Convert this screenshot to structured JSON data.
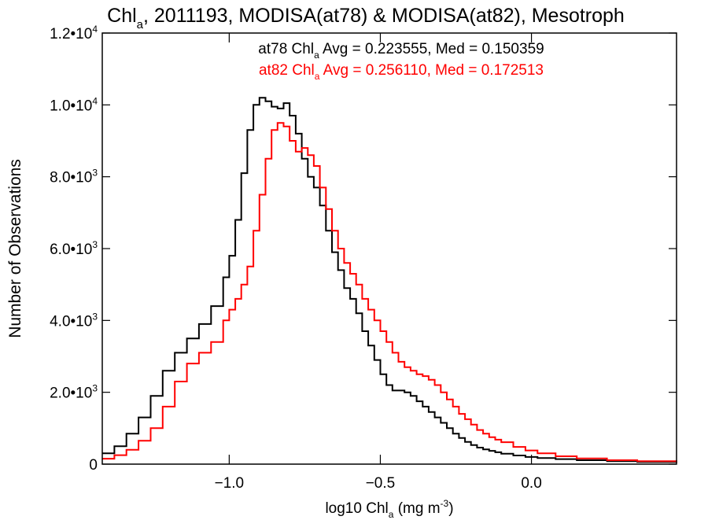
{
  "chart_data": {
    "type": "line",
    "title": {
      "prefix": "Chl",
      "sub": "a",
      "rest": ", 2011193, MODISA(at78) & MODISA(at82), Mesotroph"
    },
    "xlabel": {
      "prefix": "log10 Chl",
      "sub": "a",
      "mid": " (mg m",
      "sup": "-3",
      "end": ")"
    },
    "ylabel": "Number of Observations",
    "xlim": [
      -1.42,
      0.48
    ],
    "ylim": [
      0,
      12000
    ],
    "grid": false,
    "x_ticks": [
      {
        "value": -1.0,
        "label": "−1.0"
      },
      {
        "value": -0.5,
        "label": "−0.5"
      },
      {
        "value": 0.0,
        "label": "0.0"
      }
    ],
    "y_ticks": [
      {
        "value": 0,
        "mant": "0",
        "exp": ""
      },
      {
        "value": 2000,
        "mant": "2.0•10",
        "exp": "3"
      },
      {
        "value": 4000,
        "mant": "4.0•10",
        "exp": "3"
      },
      {
        "value": 6000,
        "mant": "6.0•10",
        "exp": "3"
      },
      {
        "value": 8000,
        "mant": "8.0•10",
        "exp": "3"
      },
      {
        "value": 10000,
        "mant": "1.0•10",
        "exp": "4"
      },
      {
        "value": 12000,
        "mant": "1.2•10",
        "exp": "4"
      }
    ],
    "series": [
      {
        "name": "at78",
        "color": "#000000",
        "legend": {
          "prefix": "at78 Chl",
          "sub": "a",
          "rest": " Avg = 0.223555, Med = 0.150359"
        },
        "points": [
          [
            -1.42,
            300
          ],
          [
            -1.38,
            500
          ],
          [
            -1.34,
            850
          ],
          [
            -1.3,
            1300
          ],
          [
            -1.26,
            1900
          ],
          [
            -1.22,
            2600
          ],
          [
            -1.18,
            3100
          ],
          [
            -1.14,
            3500
          ],
          [
            -1.1,
            3900
          ],
          [
            -1.06,
            4400
          ],
          [
            -1.02,
            5200
          ],
          [
            -1.0,
            5800
          ],
          [
            -0.98,
            6800
          ],
          [
            -0.96,
            8100
          ],
          [
            -0.94,
            9300
          ],
          [
            -0.92,
            10000
          ],
          [
            -0.9,
            10200
          ],
          [
            -0.88,
            10100
          ],
          [
            -0.86,
            9950
          ],
          [
            -0.84,
            9900
          ],
          [
            -0.82,
            10050
          ],
          [
            -0.8,
            9700
          ],
          [
            -0.78,
            9200
          ],
          [
            -0.76,
            8500
          ],
          [
            -0.74,
            8000
          ],
          [
            -0.72,
            7700
          ],
          [
            -0.7,
            7200
          ],
          [
            -0.68,
            6500
          ],
          [
            -0.66,
            5900
          ],
          [
            -0.64,
            5400
          ],
          [
            -0.62,
            4900
          ],
          [
            -0.6,
            4600
          ],
          [
            -0.58,
            4200
          ],
          [
            -0.56,
            3700
          ],
          [
            -0.54,
            3300
          ],
          [
            -0.52,
            2900
          ],
          [
            -0.5,
            2500
          ],
          [
            -0.48,
            2200
          ],
          [
            -0.46,
            2050
          ],
          [
            -0.44,
            2050
          ],
          [
            -0.42,
            2000
          ],
          [
            -0.4,
            1900
          ],
          [
            -0.38,
            1750
          ],
          [
            -0.36,
            1600
          ],
          [
            -0.34,
            1450
          ],
          [
            -0.32,
            1300
          ],
          [
            -0.3,
            1150
          ],
          [
            -0.28,
            1000
          ],
          [
            -0.26,
            850
          ],
          [
            -0.24,
            730
          ],
          [
            -0.22,
            620
          ],
          [
            -0.2,
            530
          ],
          [
            -0.18,
            460
          ],
          [
            -0.16,
            410
          ],
          [
            -0.14,
            370
          ],
          [
            -0.12,
            330
          ],
          [
            -0.1,
            290
          ],
          [
            -0.06,
            240
          ],
          [
            -0.02,
            200
          ],
          [
            0.02,
            170
          ],
          [
            0.08,
            140
          ],
          [
            0.15,
            110
          ],
          [
            0.25,
            80
          ],
          [
            0.35,
            60
          ],
          [
            0.48,
            40
          ]
        ]
      },
      {
        "name": "at82",
        "color": "#ff0000",
        "legend": {
          "prefix": "at82 Chl",
          "sub": "a",
          "rest": " Avg = 0.256110, Med = 0.172513"
        },
        "points": [
          [
            -1.42,
            150
          ],
          [
            -1.38,
            250
          ],
          [
            -1.34,
            400
          ],
          [
            -1.3,
            650
          ],
          [
            -1.26,
            1000
          ],
          [
            -1.22,
            1600
          ],
          [
            -1.18,
            2300
          ],
          [
            -1.14,
            2800
          ],
          [
            -1.1,
            3100
          ],
          [
            -1.06,
            3400
          ],
          [
            -1.02,
            4000
          ],
          [
            -1.0,
            4300
          ],
          [
            -0.98,
            4600
          ],
          [
            -0.96,
            5000
          ],
          [
            -0.94,
            5500
          ],
          [
            -0.92,
            6500
          ],
          [
            -0.9,
            7500
          ],
          [
            -0.88,
            8500
          ],
          [
            -0.86,
            9300
          ],
          [
            -0.84,
            9500
          ],
          [
            -0.82,
            9400
          ],
          [
            -0.8,
            9000
          ],
          [
            -0.78,
            8700
          ],
          [
            -0.76,
            8800
          ],
          [
            -0.74,
            8600
          ],
          [
            -0.72,
            8300
          ],
          [
            -0.7,
            7700
          ],
          [
            -0.68,
            7100
          ],
          [
            -0.66,
            6500
          ],
          [
            -0.64,
            6000
          ],
          [
            -0.62,
            5600
          ],
          [
            -0.6,
            5300
          ],
          [
            -0.58,
            5000
          ],
          [
            -0.56,
            4600
          ],
          [
            -0.54,
            4300
          ],
          [
            -0.52,
            4000
          ],
          [
            -0.5,
            3700
          ],
          [
            -0.48,
            3400
          ],
          [
            -0.46,
            3100
          ],
          [
            -0.44,
            2850
          ],
          [
            -0.42,
            2700
          ],
          [
            -0.4,
            2600
          ],
          [
            -0.38,
            2500
          ],
          [
            -0.36,
            2450
          ],
          [
            -0.34,
            2350
          ],
          [
            -0.32,
            2200
          ],
          [
            -0.3,
            2000
          ],
          [
            -0.28,
            1800
          ],
          [
            -0.26,
            1600
          ],
          [
            -0.24,
            1400
          ],
          [
            -0.22,
            1250
          ],
          [
            -0.2,
            1100
          ],
          [
            -0.18,
            950
          ],
          [
            -0.16,
            850
          ],
          [
            -0.14,
            750
          ],
          [
            -0.12,
            680
          ],
          [
            -0.1,
            610
          ],
          [
            -0.06,
            480
          ],
          [
            -0.02,
            380
          ],
          [
            0.02,
            300
          ],
          [
            0.08,
            220
          ],
          [
            0.15,
            160
          ],
          [
            0.25,
            110
          ],
          [
            0.35,
            80
          ],
          [
            0.48,
            50
          ]
        ]
      }
    ]
  }
}
